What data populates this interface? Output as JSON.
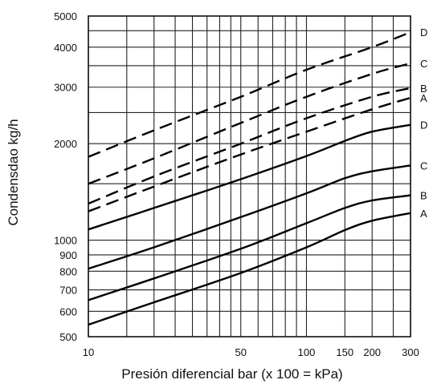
{
  "chart_data": {
    "type": "line",
    "xlabel": "Presión diferencial bar (x 100 = kPa)",
    "ylabel": "Condensdao kg/h",
    "xscale": "log",
    "yscale": "log",
    "xlim": [
      10,
      300
    ],
    "ylim": [
      500,
      5000
    ],
    "grid": true,
    "x_ticks": [
      10,
      50,
      100,
      150,
      200,
      300
    ],
    "x_tick_labels": [
      "10",
      "50",
      "100",
      "150",
      "200",
      "300"
    ],
    "y_ticks": [
      500,
      600,
      700,
      800,
      900,
      1000,
      2000,
      3000,
      4000,
      5000
    ],
    "y_tick_labels": [
      "500",
      "600",
      "700",
      "800",
      "900",
      "1000",
      "2000",
      "3000",
      "4000",
      "5000"
    ],
    "x_grid": [
      10,
      15,
      20,
      25,
      30,
      35,
      40,
      45,
      50,
      60,
      70,
      80,
      90,
      100,
      150,
      200,
      250,
      300
    ],
    "y_grid": [
      500,
      600,
      700,
      800,
      900,
      1000,
      1500,
      2000,
      2500,
      3000,
      3500,
      4000,
      4500,
      5000
    ],
    "series": [
      {
        "name": "D",
        "style": "dashed",
        "x": [
          10,
          20,
          50,
          100,
          200,
          300
        ],
        "y": [
          1820,
          2200,
          2800,
          3400,
          4000,
          4450
        ]
      },
      {
        "name": "C",
        "style": "dashed",
        "x": [
          10,
          20,
          50,
          100,
          200,
          300
        ],
        "y": [
          1500,
          1800,
          2320,
          2800,
          3300,
          3560
        ]
      },
      {
        "name": "B",
        "style": "dashed",
        "x": [
          10,
          20,
          50,
          100,
          200,
          300
        ],
        "y": [
          1300,
          1580,
          2000,
          2400,
          2800,
          2980
        ]
      },
      {
        "name": "A",
        "style": "dashed",
        "x": [
          10,
          20,
          50,
          100,
          200,
          300
        ],
        "y": [
          1230,
          1470,
          1850,
          2180,
          2560,
          2780
        ]
      },
      {
        "name": "D",
        "style": "solid",
        "x": [
          10,
          20,
          50,
          100,
          150,
          200,
          300
        ],
        "y": [
          1080,
          1260,
          1550,
          1830,
          2040,
          2180,
          2290
        ]
      },
      {
        "name": "C",
        "style": "solid",
        "x": [
          10,
          20,
          50,
          100,
          150,
          200,
          300
        ],
        "y": [
          815,
          950,
          1180,
          1400,
          1560,
          1640,
          1710
        ]
      },
      {
        "name": "B",
        "style": "solid",
        "x": [
          10,
          20,
          50,
          100,
          150,
          200,
          300
        ],
        "y": [
          650,
          760,
          940,
          1130,
          1260,
          1330,
          1380
        ]
      },
      {
        "name": "A",
        "style": "solid",
        "x": [
          10,
          20,
          50,
          100,
          150,
          200,
          300
        ],
        "y": [
          545,
          640,
          790,
          950,
          1075,
          1150,
          1215
        ]
      }
    ]
  }
}
